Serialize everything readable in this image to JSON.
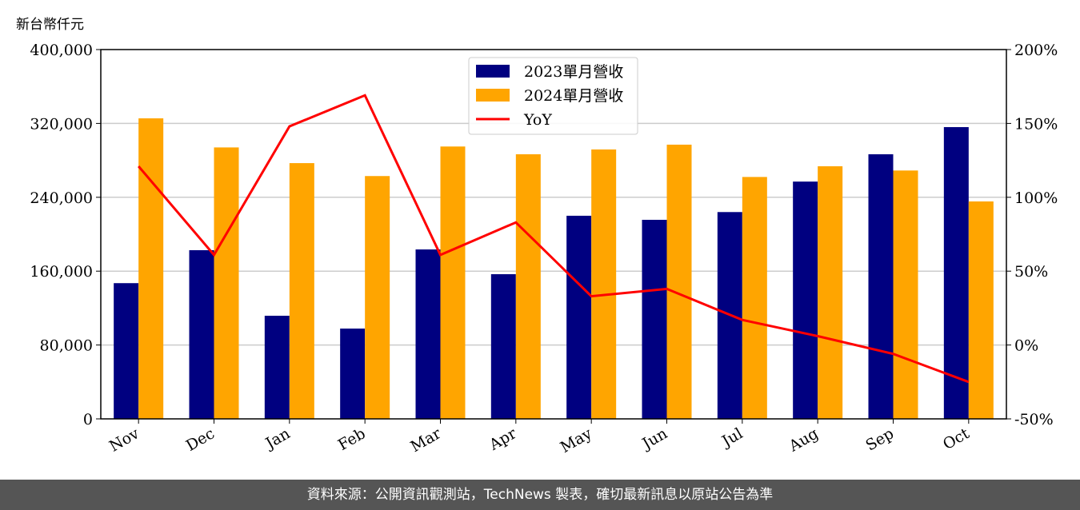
{
  "chart_data": {
    "type": "bar",
    "title": "",
    "ylabel": "新台幣仟元",
    "ylim": [
      0,
      400000
    ],
    "y2lim": [
      -50,
      200
    ],
    "yticks": [
      "0",
      "80,000",
      "160,000",
      "240,000",
      "320,000",
      "400,000"
    ],
    "y2ticks": [
      "-50%",
      "0%",
      "50%",
      "100%",
      "150%",
      "200%"
    ],
    "grid": true,
    "legend_position": "top-center",
    "categories": [
      "Nov",
      "Dec",
      "Jan",
      "Feb",
      "Mar",
      "Apr",
      "May",
      "Jun",
      "Jul",
      "Aug",
      "Sep",
      "Oct"
    ],
    "series": [
      {
        "name": "2023單月營收",
        "type": "bar",
        "color": "#000080",
        "values": [
          147000,
          182700,
          111700,
          97800,
          183500,
          156700,
          220000,
          215600,
          224000,
          257000,
          286600,
          316000
        ]
      },
      {
        "name": "2024單月營收",
        "type": "bar",
        "color": "#FFA500",
        "values": [
          325500,
          294000,
          277000,
          263000,
          295000,
          286600,
          291800,
          297000,
          262000,
          273600,
          269000,
          235500
        ]
      },
      {
        "name": "YoY",
        "type": "line",
        "axis": "right",
        "color": "#FF0000",
        "values": [
          121,
          61,
          148,
          169,
          61,
          83,
          33,
          38,
          17,
          6,
          -6,
          -25
        ]
      }
    ]
  },
  "footer": {
    "source": "資料來源：公開資訊觀測站，TechNews 製表，確切最新訊息以原站公告為準"
  }
}
